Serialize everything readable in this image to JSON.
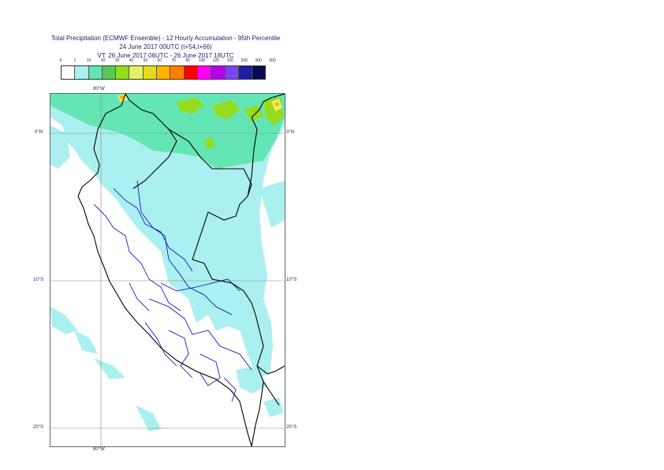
{
  "title": {
    "line1": "Total Precipitation (ECMWF Ensemble) - 12 Hourly Accumulation - 95th Percentile",
    "line2": "24 June 2017 00UTC (t+54,t+66)",
    "line3": "VT: 26 June 2017 06UTC - 26 June 2017 18UTC"
  },
  "legend": {
    "ticks": [
      "0",
      "1",
      "10",
      "20",
      "30",
      "40",
      "50",
      "60",
      "70",
      "80",
      "100",
      "125",
      "150",
      "200",
      "300",
      "500"
    ],
    "colors": [
      "#ffffff",
      "#aaf0f0",
      "#64e6b4",
      "#5ac85a",
      "#96dc1e",
      "#e6f064",
      "#e6dc1e",
      "#ffb400",
      "#ff8000",
      "#ff0000",
      "#ff00ff",
      "#b400e6",
      "#7846f0",
      "#1e1ea0",
      "#0a0a50"
    ]
  },
  "map": {
    "labels": {
      "lon_top": "80°W",
      "lon_bottom": "80°W",
      "lat_0_left": "0°N",
      "lat_0_right": "0°N",
      "lat_10_left": "10°S",
      "lat_10_right": "10°S",
      "lat_20_left": "20°S",
      "lat_20_right": "20°S"
    },
    "precip_colors": {
      "light": "#aaf0f0",
      "medium": "#64e6b4",
      "green": "#96dc1e",
      "yellow": "#e6f064",
      "orange": "#ffb400"
    },
    "coast_color": "#000000",
    "border_color": "#0000b4"
  }
}
